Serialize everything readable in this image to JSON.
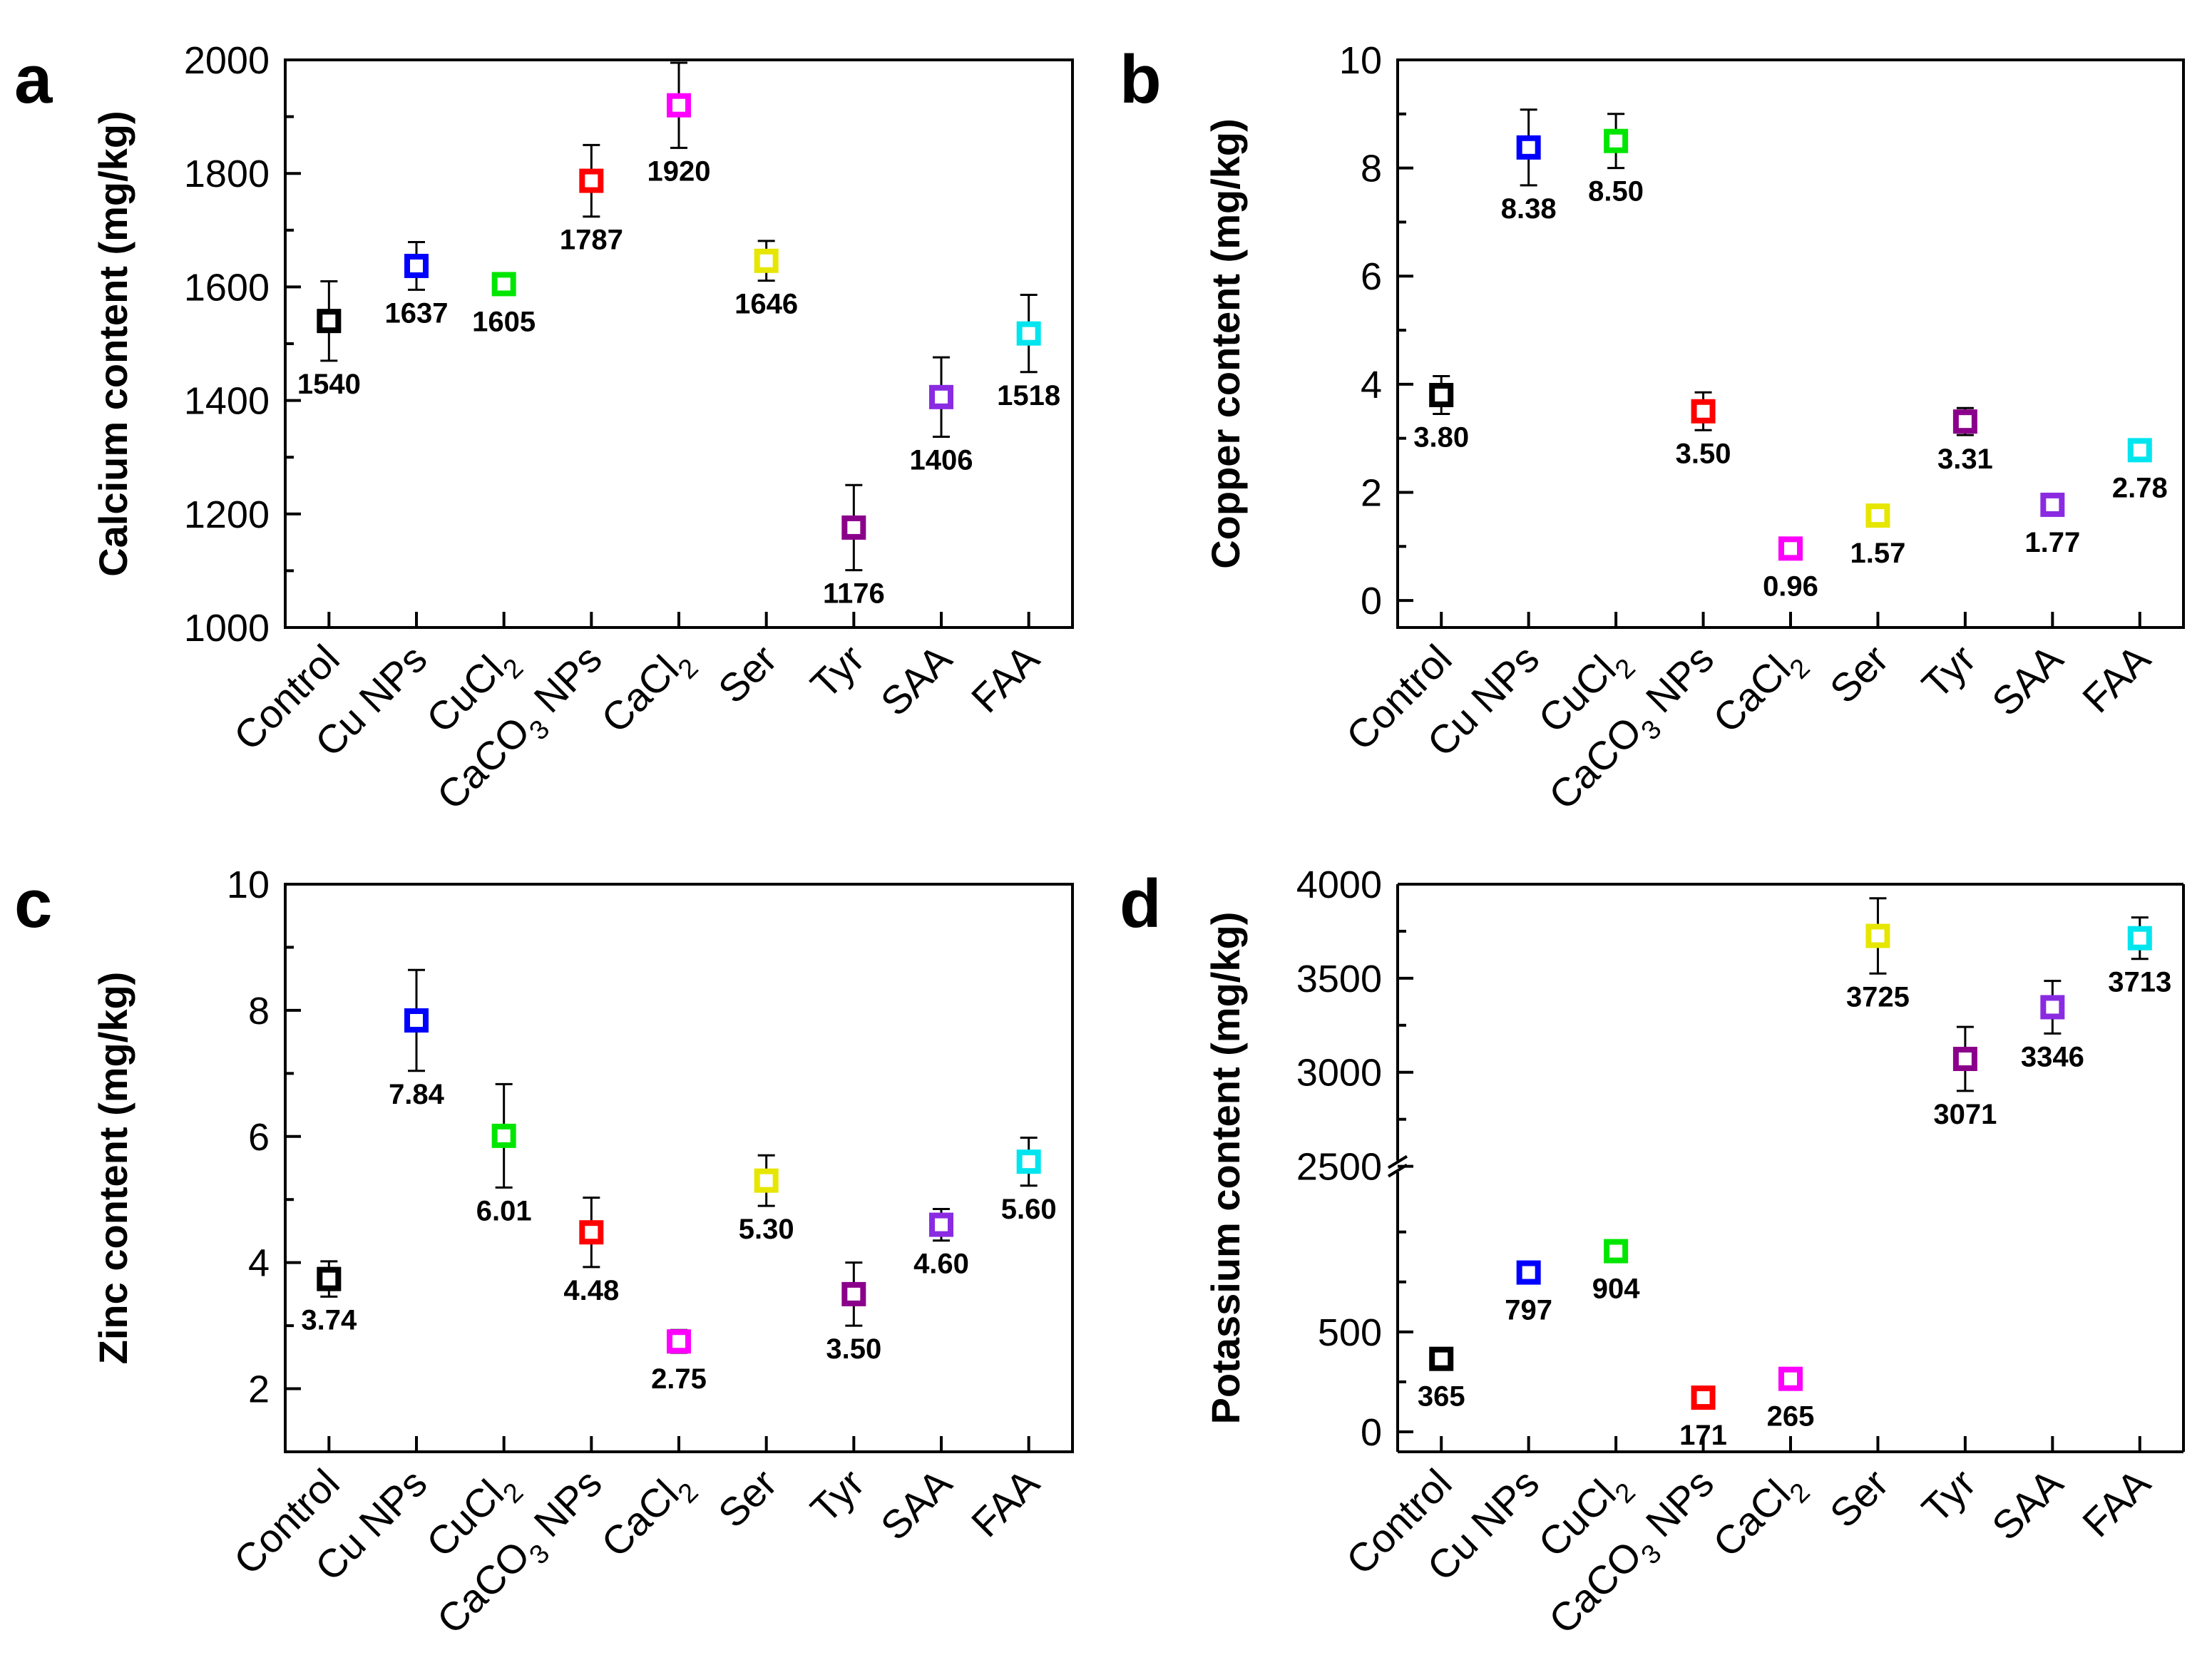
{
  "figure": {
    "categories": [
      {
        "pre": "Control"
      },
      {
        "pre": "Cu NPs"
      },
      {
        "pre": "CuCl",
        "sub": "2"
      },
      {
        "pre": "CaCO",
        "sub": "3",
        "post": " NPs"
      },
      {
        "pre": "CaCl",
        "sub": "2"
      },
      {
        "pre": "Ser"
      },
      {
        "pre": "Tyr"
      },
      {
        "pre": "SAA"
      },
      {
        "pre": "FAA"
      }
    ],
    "colors": [
      "#000000",
      "#0000ff",
      "#00e600",
      "#ff0000",
      "#ff00ff",
      "#e6e600",
      "#8b008b",
      "#8a2be2",
      "#00e5ee"
    ]
  },
  "chart_data": [
    {
      "panel": "a",
      "type": "scatter",
      "ylabel": "Calcium content (mg/kg)",
      "ylim": [
        1000,
        2000
      ],
      "yticks": [
        1000,
        1200,
        1400,
        1600,
        1800,
        2000
      ],
      "values": [
        1540,
        1637,
        1605,
        1787,
        1920,
        1646,
        1176,
        1406,
        1518
      ],
      "errors": [
        70,
        42,
        15,
        63,
        75,
        35,
        75,
        70,
        68
      ],
      "labels": [
        "1540",
        "1637",
        "1605",
        "1787",
        "1920",
        "1646",
        "1176",
        "1406",
        "1518"
      ]
    },
    {
      "panel": "b",
      "type": "scatter",
      "ylabel": "Copper content (mg/kg)",
      "ylim": [
        -0.5,
        10
      ],
      "yticks": [
        0,
        2,
        4,
        6,
        8,
        10
      ],
      "values": [
        3.8,
        8.38,
        8.5,
        3.5,
        0.96,
        1.57,
        3.31,
        1.77,
        2.78
      ],
      "errors": [
        0.35,
        0.7,
        0.5,
        0.35,
        0.05,
        0.05,
        0.25,
        0.05,
        0.15
      ],
      "labels": [
        "3.80",
        "8.38",
        "8.50",
        "3.50",
        "0.96",
        "1.57",
        "3.31",
        "1.77",
        "2.78"
      ]
    },
    {
      "panel": "c",
      "type": "scatter",
      "ylabel": "Zinc content (mg/kg)",
      "ylim": [
        1,
        10
      ],
      "yticks": [
        2,
        4,
        6,
        8,
        10
      ],
      "values": [
        3.74,
        7.84,
        6.01,
        4.48,
        2.75,
        5.3,
        3.5,
        4.6,
        5.6
      ],
      "errors": [
        0.28,
        0.8,
        0.82,
        0.55,
        0.18,
        0.4,
        0.5,
        0.25,
        0.38
      ],
      "labels": [
        "3.74",
        "7.84",
        "6.01",
        "4.48",
        "2.75",
        "5.30",
        "3.50",
        "4.60",
        "5.60"
      ]
    },
    {
      "panel": "d",
      "type": "scatter",
      "ylabel": "Potassium content (mg/kg)",
      "broken_axis": true,
      "ylim_lower": [
        -100,
        1300
      ],
      "ylim_upper": [
        2500,
        4000
      ],
      "break_value": 2500,
      "yticks": [
        0,
        500,
        2500,
        3000,
        3500,
        4000
      ],
      "ytick_labels": [
        "0",
        "500",
        "2500",
        "3000",
        "3500",
        "4000"
      ],
      "values": [
        365,
        797,
        904,
        171,
        265,
        3725,
        3071,
        3346,
        3713
      ],
      "errors": [
        50,
        20,
        30,
        20,
        15,
        200,
        170,
        140,
        110
      ],
      "labels": [
        "365",
        "797",
        "904",
        "171",
        "265",
        "3725",
        "3071",
        "3346",
        "3713"
      ]
    }
  ]
}
